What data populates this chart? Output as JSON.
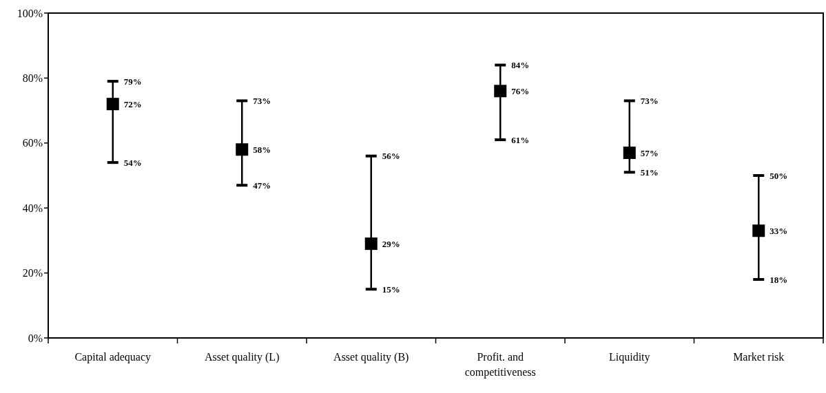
{
  "chart_data": {
    "type": "scatter",
    "categories": [
      "Capital adequacy",
      "Asset quality (L)",
      "Asset quality (B)",
      "Profit. and competitiveness",
      "Liquidity",
      "Market risk"
    ],
    "values": [
      72,
      58,
      29,
      76,
      57,
      33
    ],
    "errors": [
      [
        54,
        79
      ],
      [
        47,
        73
      ],
      [
        15,
        56
      ],
      [
        61,
        84
      ],
      [
        51,
        73
      ],
      [
        18,
        50
      ]
    ],
    "value_labels": [
      "72%",
      "58%",
      "29%",
      "76%",
      "57%",
      "33%"
    ],
    "color": "#000000",
    "marker": "square",
    "grid": false,
    "ylim": [
      0,
      100
    ],
    "yticks": [
      {
        "value": 0,
        "label": "0%"
      },
      {
        "value": 20,
        "label": "20%"
      },
      {
        "value": 40,
        "label": "40%"
      },
      {
        "value": 60,
        "label": "60%"
      },
      {
        "value": 80,
        "label": "80%"
      },
      {
        "value": 100,
        "label": "100%"
      }
    ],
    "annotations": [
      {
        "text": "79%",
        "x": "Capital adequacy",
        "y": 79
      },
      {
        "text": "54%",
        "x": "Capital adequacy",
        "y": 54
      },
      {
        "text": "73%",
        "x": "Asset quality (L)",
        "y": 73
      },
      {
        "text": "47%",
        "x": "Asset quality (L)",
        "y": 47
      },
      {
        "text": "56%",
        "x": "Asset quality (B)",
        "y": 56
      },
      {
        "text": "15%",
        "x": "Asset quality (B)",
        "y": 15
      },
      {
        "text": "84%",
        "x": "Profit. and competitiveness",
        "y": 84
      },
      {
        "text": "61%",
        "x": "Profit. and competitiveness",
        "y": 61
      },
      {
        "text": "73%",
        "x": "Liquidity",
        "y": 73
      },
      {
        "text": "51%",
        "x": "Liquidity",
        "y": 51
      },
      {
        "text": "50%",
        "x": "Market risk",
        "y": 50
      },
      {
        "text": "18%",
        "x": "Market risk",
        "y": 18
      }
    ]
  }
}
